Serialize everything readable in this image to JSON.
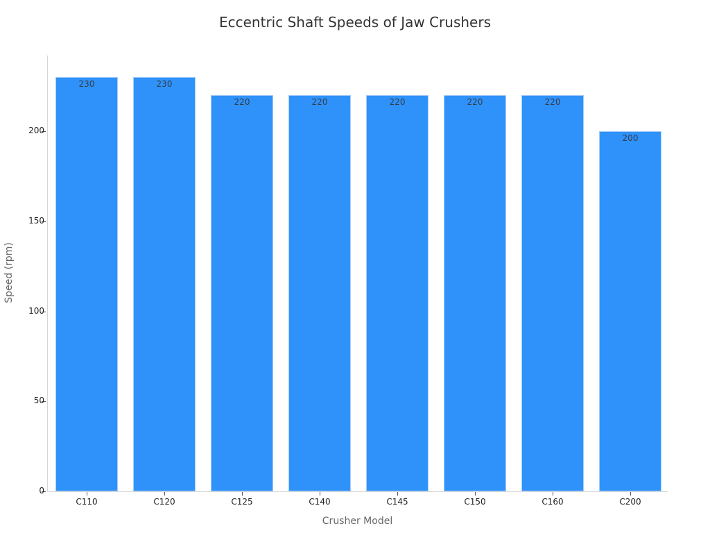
{
  "chart_data": {
    "type": "bar",
    "title": "Eccentric Shaft Speeds of Jaw Crushers",
    "xlabel": "Crusher Model",
    "ylabel": "Speed (rpm)",
    "categories": [
      "C110",
      "C120",
      "C125",
      "C140",
      "C145",
      "C150",
      "C160",
      "C200"
    ],
    "values": [
      230,
      230,
      220,
      220,
      220,
      220,
      220,
      200
    ],
    "ylim": [
      0,
      242
    ],
    "yticks": [
      0,
      50,
      100,
      150,
      200
    ],
    "grid": false,
    "legend": null,
    "bar_color": "#2f92fa",
    "data_labels": true
  }
}
